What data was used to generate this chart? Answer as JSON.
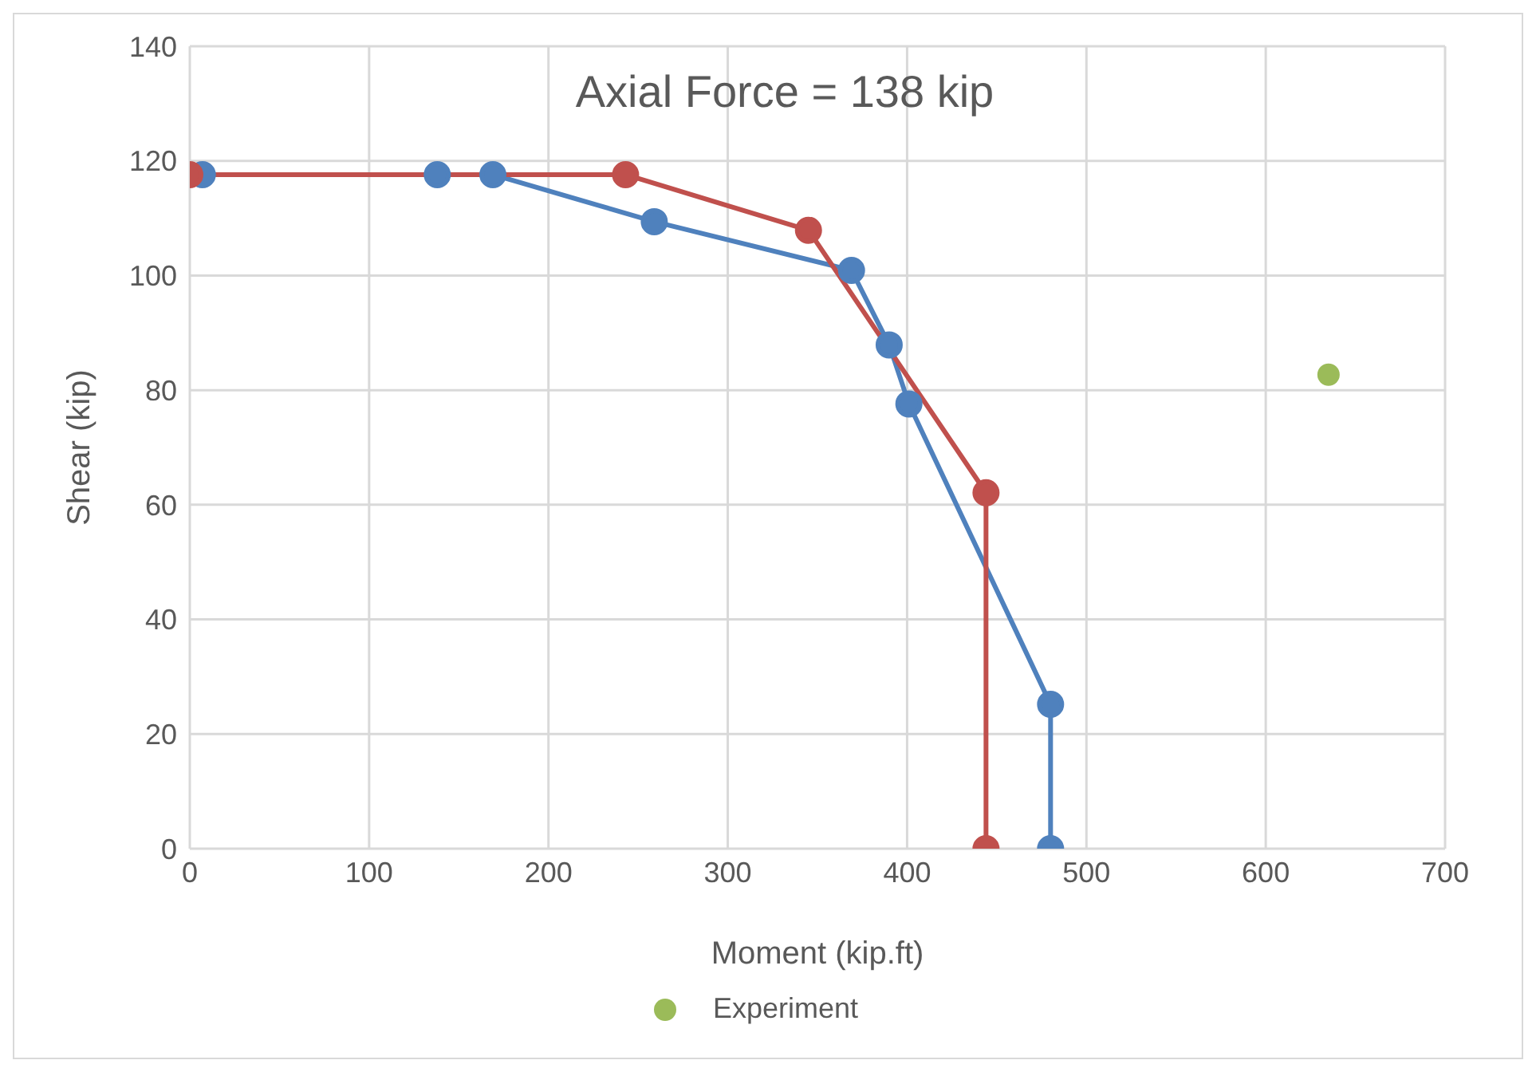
{
  "chart_data": {
    "type": "line",
    "title": "Axial Force = 138 kip",
    "xlabel": "Moment (kip.ft)",
    "ylabel": "Shear (kip)",
    "xlim": [
      0,
      700
    ],
    "xticks": [
      0,
      100,
      200,
      300,
      400,
      500,
      600,
      700
    ],
    "ylim": [
      0,
      140
    ],
    "yticks": [
      0,
      20,
      40,
      60,
      80,
      100,
      120,
      140
    ],
    "grid": true,
    "legend": "bottom",
    "marker": "circle",
    "line_style": "solid",
    "series": [
      {
        "color": "#4f81bd",
        "x": [
          7,
          138,
          169,
          259,
          369,
          390,
          401,
          480,
          480
        ],
        "values": [
          117.6,
          117.6,
          117.6,
          109.4,
          100.9,
          87.9,
          77.6,
          25.2,
          0
        ]
      },
      {
        "color": "#c0504d",
        "x": [
          0,
          243,
          345,
          444,
          444
        ],
        "values": [
          117.6,
          117.6,
          107.9,
          62.1,
          0
        ]
      },
      {
        "name": "Experiment",
        "type": "scatter",
        "color": "#9bbb59",
        "x": [
          635
        ],
        "values": [
          82.7
        ]
      }
    ]
  }
}
